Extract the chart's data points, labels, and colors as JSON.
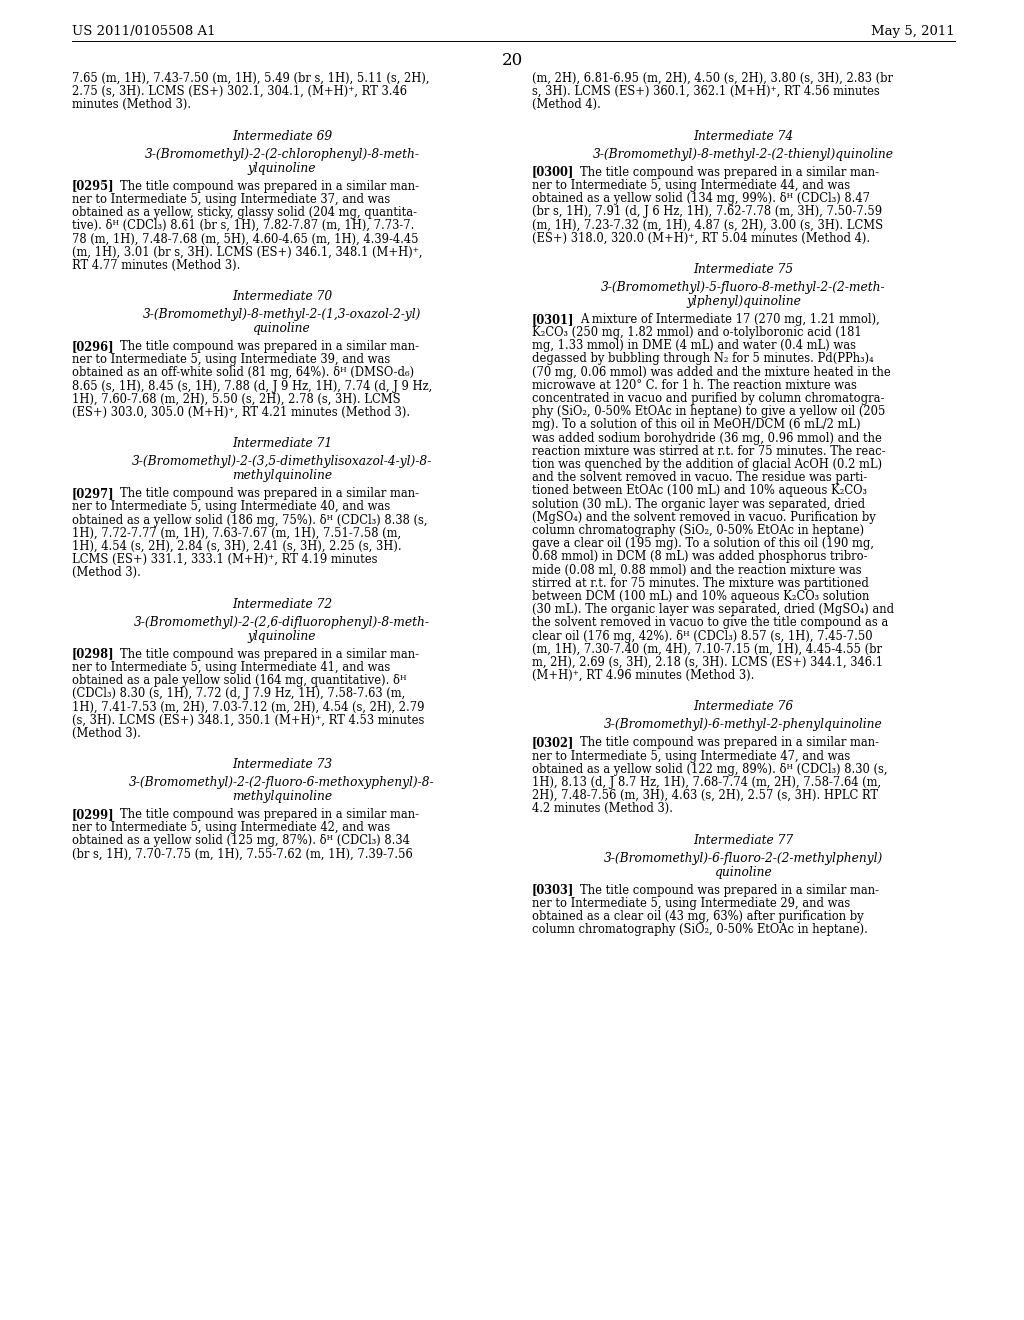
{
  "header_left": "US 2011/0105508 A1",
  "header_right": "May 5, 2011",
  "page_number": "20",
  "left_col_blocks": [
    {
      "type": "continuation",
      "lines": [
        "7.65 (m, 1H), 7.43-7.50 (m, 1H), 5.49 (br s, 1H), 5.11 (s, 2H),",
        "2.75 (s, 3H). LCMS (ES+) 302.1, 304.1, (M+H)⁺, RT 3.46",
        "minutes (Method 3)."
      ]
    },
    {
      "type": "gap_large"
    },
    {
      "type": "section_title",
      "text": "Intermediate 69"
    },
    {
      "type": "gap_small"
    },
    {
      "type": "compound_title",
      "lines": [
        "3-(Bromomethyl)-2-(2-chlorophenyl)-8-meth-",
        "ylquinoline"
      ]
    },
    {
      "type": "gap_small"
    },
    {
      "type": "paragraph",
      "tag": "[0295]",
      "lines": [
        "The title compound was prepared in a similar man-",
        "ner to Intermediate 5, using Intermediate 37, and was",
        "obtained as a yellow, sticky, glassy solid (204 mg, quantita-",
        "tive). δᴴ (CDCl₃) 8.61 (br s, 1H), 7.82-7.87 (m, 1H), 7.73-7.",
        "78 (m, 1H), 7.48-7.68 (m, 5H), 4.60-4.65 (m, 1H), 4.39-4.45",
        "(m, 1H), 3.01 (br s, 3H). LCMS (ES+) 346.1, 348.1 (M+H)⁺,",
        "RT 4.77 minutes (Method 3)."
      ]
    },
    {
      "type": "gap_large"
    },
    {
      "type": "section_title",
      "text": "Intermediate 70"
    },
    {
      "type": "gap_small"
    },
    {
      "type": "compound_title",
      "lines": [
        "3-(Bromomethyl)-8-methyl-2-(1,3-oxazol-2-yl)",
        "quinoline"
      ]
    },
    {
      "type": "gap_small"
    },
    {
      "type": "paragraph",
      "tag": "[0296]",
      "lines": [
        "The title compound was prepared in a similar man-",
        "ner to Intermediate 5, using Intermediate 39, and was",
        "obtained as an off-white solid (81 mg, 64%). δᴴ (DMSO-d₆)",
        "8.65 (s, 1H), 8.45 (s, 1H), 7.88 (d, J 9 Hz, 1H), 7.74 (d, J 9 Hz,",
        "1H), 7.60-7.68 (m, 2H), 5.50 (s, 2H), 2.78 (s, 3H). LCMS",
        "(ES+) 303.0, 305.0 (M+H)⁺, RT 4.21 minutes (Method 3)."
      ]
    },
    {
      "type": "gap_large"
    },
    {
      "type": "section_title",
      "text": "Intermediate 71"
    },
    {
      "type": "gap_small"
    },
    {
      "type": "compound_title",
      "lines": [
        "3-(Bromomethyl)-2-(3,5-dimethylisoxazol-4-yl)-8-",
        "methylquinoline"
      ]
    },
    {
      "type": "gap_small"
    },
    {
      "type": "paragraph",
      "tag": "[0297]",
      "lines": [
        "The title compound was prepared in a similar man-",
        "ner to Intermediate 5, using Intermediate 40, and was",
        "obtained as a yellow solid (186 mg, 75%). δᴴ (CDCl₃) 8.38 (s,",
        "1H), 7.72-7.77 (m, 1H), 7.63-7.67 (m, 1H), 7.51-7.58 (m,",
        "1H), 4.54 (s, 2H), 2.84 (s, 3H), 2.41 (s, 3H), 2.25 (s, 3H).",
        "LCMS (ES+) 331.1, 333.1 (M+H)⁺, RT 4.19 minutes",
        "(Method 3)."
      ]
    },
    {
      "type": "gap_large"
    },
    {
      "type": "section_title",
      "text": "Intermediate 72"
    },
    {
      "type": "gap_small"
    },
    {
      "type": "compound_title",
      "lines": [
        "3-(Bromomethyl)-2-(2,6-difluorophenyl)-8-meth-",
        "ylquinoline"
      ]
    },
    {
      "type": "gap_small"
    },
    {
      "type": "paragraph",
      "tag": "[0298]",
      "lines": [
        "The title compound was prepared in a similar man-",
        "ner to Intermediate 5, using Intermediate 41, and was",
        "obtained as a pale yellow solid (164 mg, quantitative). δᴴ",
        "(CDCl₃) 8.30 (s, 1H), 7.72 (d, J 7.9 Hz, 1H), 7.58-7.63 (m,",
        "1H), 7.41-7.53 (m, 2H), 7.03-7.12 (m, 2H), 4.54 (s, 2H), 2.79",
        "(s, 3H). LCMS (ES+) 348.1, 350.1 (M+H)⁺, RT 4.53 minutes",
        "(Method 3)."
      ]
    },
    {
      "type": "gap_large"
    },
    {
      "type": "section_title",
      "text": "Intermediate 73"
    },
    {
      "type": "gap_small"
    },
    {
      "type": "compound_title",
      "lines": [
        "3-(Bromomethyl)-2-(2-fluoro-6-methoxyphenyl)-8-",
        "methylquinoline"
      ]
    },
    {
      "type": "gap_small"
    },
    {
      "type": "paragraph",
      "tag": "[0299]",
      "lines": [
        "The title compound was prepared in a similar man-",
        "ner to Intermediate 5, using Intermediate 42, and was",
        "obtained as a yellow solid (125 mg, 87%). δᴴ (CDCl₃) 8.34",
        "(br s, 1H), 7.70-7.75 (m, 1H), 7.55-7.62 (m, 1H), 7.39-7.56"
      ]
    }
  ],
  "right_col_blocks": [
    {
      "type": "continuation",
      "lines": [
        "(m, 2H), 6.81-6.95 (m, 2H), 4.50 (s, 2H), 3.80 (s, 3H), 2.83 (br",
        "s, 3H). LCMS (ES+) 360.1, 362.1 (M+H)⁺, RT 4.56 minutes",
        "(Method 4)."
      ]
    },
    {
      "type": "gap_large"
    },
    {
      "type": "section_title",
      "text": "Intermediate 74"
    },
    {
      "type": "gap_small"
    },
    {
      "type": "compound_title",
      "lines": [
        "3-(Bromomethyl)-8-methyl-2-(2-thienyl)quinoline"
      ]
    },
    {
      "type": "gap_small"
    },
    {
      "type": "paragraph",
      "tag": "[0300]",
      "lines": [
        "The title compound was prepared in a similar man-",
        "ner to Intermediate 5, using Intermediate 44, and was",
        "obtained as a yellow solid (134 mg, 99%). δᴴ (CDCl₃) 8.47",
        "(br s, 1H), 7.91 (d, J 6 Hz, 1H), 7.62-7.78 (m, 3H), 7.50-7.59",
        "(m, 1H), 7.23-7.32 (m, 1H), 4.87 (s, 2H), 3.00 (s, 3H). LCMS",
        "(ES+) 318.0, 320.0 (M+H)⁺, RT 5.04 minutes (Method 4)."
      ]
    },
    {
      "type": "gap_large"
    },
    {
      "type": "section_title",
      "text": "Intermediate 75"
    },
    {
      "type": "gap_small"
    },
    {
      "type": "compound_title",
      "lines": [
        "3-(Bromomethyl)-5-fluoro-8-methyl-2-(2-meth-",
        "ylphenyl)quinoline"
      ]
    },
    {
      "type": "gap_small"
    },
    {
      "type": "paragraph",
      "tag": "[0301]",
      "lines": [
        "A mixture of Intermediate 17 (270 mg, 1.21 mmol),",
        "K₂CO₃ (250 mg, 1.82 mmol) and o-tolylboronic acid (181",
        "mg, 1.33 mmol) in DME (4 mL) and water (0.4 mL) was",
        "degassed by bubbling through N₂ for 5 minutes. Pd(PPh₃)₄",
        "(70 mg, 0.06 mmol) was added and the mixture heated in the",
        "microwave at 120° C. for 1 h. The reaction mixture was",
        "concentrated in vacuo and purified by column chromatogra-",
        "phy (SiO₂, 0-50% EtOAc in heptane) to give a yellow oil (205",
        "mg). To a solution of this oil in MeOH/DCM (6 mL/2 mL)",
        "was added sodium borohydride (36 mg, 0.96 mmol) and the",
        "reaction mixture was stirred at r.t. for 75 minutes. The reac-",
        "tion was quenched by the addition of glacial AcOH (0.2 mL)",
        "and the solvent removed in vacuo. The residue was parti-",
        "tioned between EtOAc (100 mL) and 10% aqueous K₂CO₃",
        "solution (30 mL). The organic layer was separated, dried",
        "(MgSO₄) and the solvent removed in vacuo. Purification by",
        "column chromatography (SiO₂, 0-50% EtOAc in heptane)",
        "gave a clear oil (195 mg). To a solution of this oil (190 mg,",
        "0.68 mmol) in DCM (8 mL) was added phosphorus tribro-",
        "mide (0.08 ml, 0.88 mmol) and the reaction mixture was",
        "stirred at r.t. for 75 minutes. The mixture was partitioned",
        "between DCM (100 mL) and 10% aqueous K₂CO₃ solution",
        "(30 mL). The organic layer was separated, dried (MgSO₄) and",
        "the solvent removed in vacuo to give the title compound as a",
        "clear oil (176 mg, 42%). δᴴ (CDCl₃) 8.57 (s, 1H), 7.45-7.50",
        "(m, 1H), 7.30-7.40 (m, 4H), 7.10-7.15 (m, 1H), 4.45-4.55 (br",
        "m, 2H), 2.69 (s, 3H), 2.18 (s, 3H). LCMS (ES+) 344.1, 346.1",
        "(M+H)⁺, RT 4.96 minutes (Method 3)."
      ]
    },
    {
      "type": "gap_large"
    },
    {
      "type": "section_title",
      "text": "Intermediate 76"
    },
    {
      "type": "gap_small"
    },
    {
      "type": "compound_title",
      "lines": [
        "3-(Bromomethyl)-6-methyl-2-phenylquinoline"
      ]
    },
    {
      "type": "gap_small"
    },
    {
      "type": "paragraph",
      "tag": "[0302]",
      "lines": [
        "The title compound was prepared in a similar man-",
        "ner to Intermediate 5, using Intermediate 47, and was",
        "obtained as a yellow solid (122 mg, 89%). δᴴ (CDCl₃) 8.30 (s,",
        "1H), 8.13 (d, J 8.7 Hz, 1H), 7.68-7.74 (m, 2H), 7.58-7.64 (m,",
        "2H), 7.48-7.56 (m, 3H), 4.63 (s, 2H), 2.57 (s, 3H). HPLC RT",
        "4.2 minutes (Method 3)."
      ]
    },
    {
      "type": "gap_large"
    },
    {
      "type": "section_title",
      "text": "Intermediate 77"
    },
    {
      "type": "gap_small"
    },
    {
      "type": "compound_title",
      "lines": [
        "3-(Bromomethyl)-6-fluoro-2-(2-methylphenyl)",
        "quinoline"
      ]
    },
    {
      "type": "gap_small"
    },
    {
      "type": "paragraph",
      "tag": "[0303]",
      "lines": [
        "The title compound was prepared in a similar man-",
        "ner to Intermediate 5, using Intermediate 29, and was",
        "obtained as a clear oil (43 mg, 63%) after purification by",
        "column chromatography (SiO₂, 0-50% EtOAc in heptane)."
      ]
    }
  ]
}
